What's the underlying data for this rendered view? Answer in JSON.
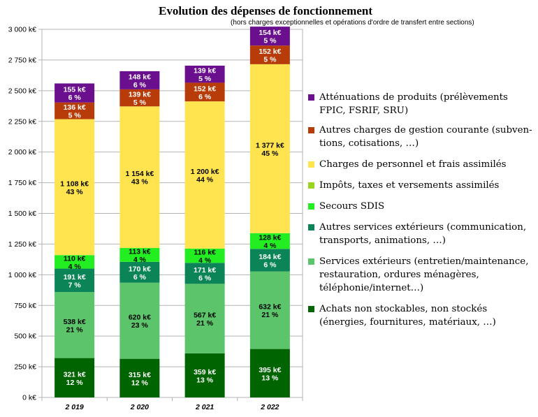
{
  "chart_data": {
    "type": "bar",
    "stacked": true,
    "title": "Evolution des dépenses de fonctionnement",
    "subtitle": "(hors charges exceptionnelles et opérations d'ordre de transfert entre sections)",
    "categories": [
      "2 019",
      "2 020",
      "2 021",
      "2 022"
    ],
    "ylim": [
      0,
      3000
    ],
    "yticks": [
      {
        "value": 0,
        "label": "0 k€"
      },
      {
        "value": 250,
        "label": "250 k€"
      },
      {
        "value": 500,
        "label": "500 k€"
      },
      {
        "value": 750,
        "label": "750 k€"
      },
      {
        "value": 1000,
        "label": "1 000 k€"
      },
      {
        "value": 1250,
        "label": "1 250 k€"
      },
      {
        "value": 1500,
        "label": "1 500 k€"
      },
      {
        "value": 1750,
        "label": "1 750 k€"
      },
      {
        "value": 2000,
        "label": "2 000 k€"
      },
      {
        "value": 2250,
        "label": "2 250 k€"
      },
      {
        "value": 2500,
        "label": "2 500 k€"
      },
      {
        "value": 2750,
        "label": "2 750 k€"
      },
      {
        "value": 3000,
        "label": "3 000 k€"
      }
    ],
    "grid": true,
    "legend_position": "right",
    "series": [
      {
        "name": "Achats non stockables, non stockés (énergies, fournitures, matériaux, …)",
        "color": "#006400",
        "label_color": "#ffffff",
        "values": [
          321,
          315,
          359,
          395
        ],
        "labels": [
          [
            "321 k€",
            "12 %"
          ],
          [
            "315 k€",
            "12 %"
          ],
          [
            "359 k€",
            "13 %"
          ],
          [
            "395 k€",
            "13 %"
          ]
        ]
      },
      {
        "name": "Services extérieurs (entretien/maintenance, restauration, ordures ménagères, téléphonie/internet…)",
        "color": "#5cc46b",
        "label_color": "#000000",
        "values": [
          538,
          620,
          567,
          632
        ],
        "labels": [
          [
            "538 k€",
            "21 %"
          ],
          [
            "620 k€",
            "23 %"
          ],
          [
            "567 k€",
            "21 %"
          ],
          [
            "632 k€",
            "21 %"
          ]
        ]
      },
      {
        "name": "Autres services extérieurs (communication, transports, animations, …)",
        "color": "#0b8557",
        "label_color": "#ffffff",
        "values": [
          191,
          170,
          171,
          184
        ],
        "labels": [
          [
            "191 k€",
            "7 %"
          ],
          [
            "170 k€",
            "6 %"
          ],
          [
            "171 k€",
            "6 %"
          ],
          [
            "184 k€",
            "6 %"
          ]
        ]
      },
      {
        "name": "Secours SDIS",
        "color": "#22ee22",
        "label_color": "#000000",
        "values": [
          110,
          113,
          116,
          128
        ],
        "labels": [
          [
            "110 k€",
            "4 %"
          ],
          [
            "113 k€",
            "4 %"
          ],
          [
            "116 k€",
            "4 %"
          ],
          [
            "128 k€",
            "4 %"
          ]
        ]
      },
      {
        "name": "Impôts, taxes et versements assimilés",
        "color": "#9bd41c",
        "label_color": "#000000",
        "values": [
          0,
          0,
          0,
          0
        ],
        "labels": []
      },
      {
        "name": "Charges de personnel et frais assimilés",
        "color": "#ffe450",
        "label_color": "#000000",
        "values": [
          1108,
          1154,
          1200,
          1377
        ],
        "labels": [
          [
            "1 108 k€",
            "43 %"
          ],
          [
            "1 154 k€",
            "43 %"
          ],
          [
            "1 200 k€",
            "44 %"
          ],
          [
            "1 377 k€",
            "45 %"
          ]
        ]
      },
      {
        "name": "Autres charges de gestion courante (subven-tions, cotisations, …)",
        "color": "#b83c09",
        "label_color": "#ffffff",
        "values": [
          136,
          139,
          152,
          152
        ],
        "labels": [
          [
            "136 k€",
            "5 %"
          ],
          [
            "139 k€",
            "5 %"
          ],
          [
            "152 k€",
            "6 %"
          ],
          [
            "152 k€",
            "5 %"
          ]
        ]
      },
      {
        "name": "Atténuations de produits (prélèvements FPIC, FSRIF, SRU)",
        "color": "#6a0f8d",
        "label_color": "#ffffff",
        "values": [
          155,
          148,
          139,
          154
        ],
        "labels": [
          [
            "155 k€",
            "6 %"
          ],
          [
            "148 k€",
            "6 %"
          ],
          [
            "139 k€",
            "5 %"
          ],
          [
            "154 k€",
            "5 %"
          ]
        ]
      }
    ],
    "legend": [
      {
        "label": "Atténuations de produits (prélèvements FPIC, FSRIF, SRU)",
        "color": "#6a0f8d"
      },
      {
        "label": "Autres charges de gestion courante (subven-tions, cotisations, …)",
        "color": "#b83c09"
      },
      {
        "label": "Charges de personnel et frais assimilés",
        "color": "#ffe450"
      },
      {
        "label": "Impôts, taxes et versements assimilés",
        "color": "#9bd41c"
      },
      {
        "label": "Secours SDIS",
        "color": "#22ee22"
      },
      {
        "label": "Autres services extérieurs (communication, transports, animations, …)",
        "color": "#0b8557"
      },
      {
        "label": "Services extérieurs (entretien/maintenance, restauration, ordures ménagères, téléphonie/internet…)",
        "color": "#5cc46b"
      },
      {
        "label": "Achats non stockables, non stockés (énergies, fournitures, matériaux, …)",
        "color": "#006400"
      }
    ]
  }
}
